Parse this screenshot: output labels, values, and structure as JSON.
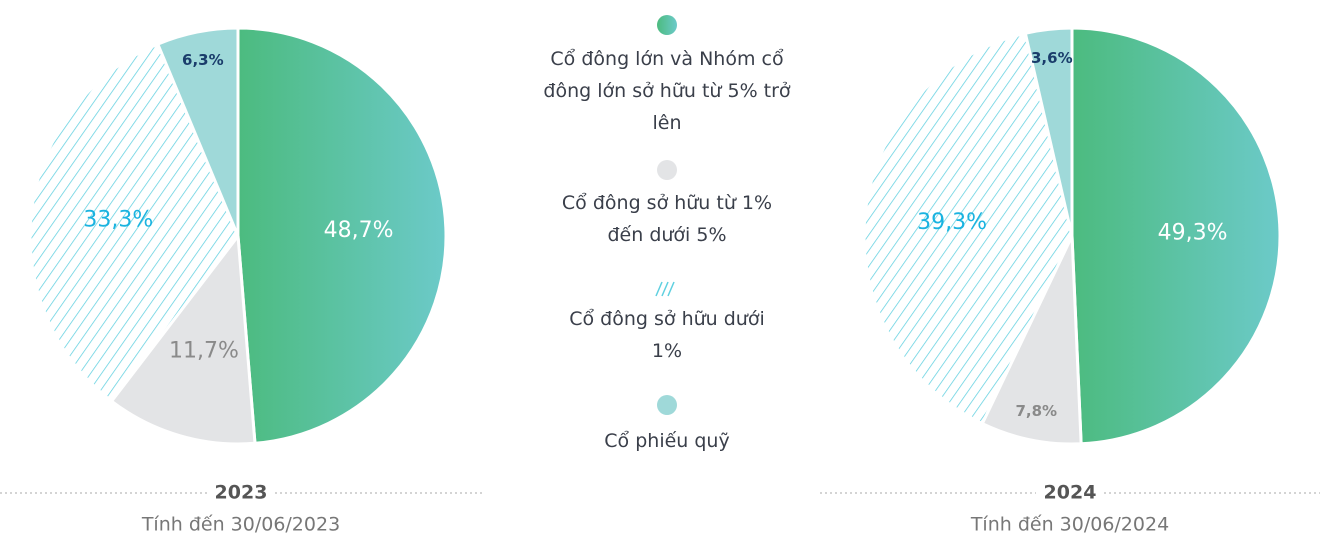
{
  "chart_data": [
    {
      "type": "pie",
      "title": "2023",
      "subtitle": "Tính đến 30/06/2023",
      "categories": [
        "Cổ đông lớn và Nhóm cổ đông lớn sở hữu từ 5% trở lên",
        "Cổ đông sở hữu từ 1% đến dưới 5%",
        "Cổ đông sở hữu dưới 1%",
        "Cổ phiếu quỹ"
      ],
      "values": [
        48.7,
        11.7,
        33.3,
        6.3
      ],
      "value_labels": [
        "48,7%",
        "11,7%",
        "33,3%",
        "6,3%"
      ],
      "colors": [
        "#4cbb7f",
        "#e3e4e6",
        "#5fd0e0",
        "#9fd9d9"
      ]
    },
    {
      "type": "pie",
      "title": "2024",
      "subtitle": "Tính đến 30/06/2024",
      "categories": [
        "Cổ đông lớn và Nhóm cổ đông lớn sở hữu từ 5% trở lên",
        "Cổ đông sở hữu từ 1% đến dưới 5%",
        "Cổ đông sở hữu dưới 1%",
        "Cổ phiếu quỹ"
      ],
      "values": [
        49.3,
        7.8,
        39.3,
        3.6
      ],
      "value_labels": [
        "49,3%",
        "7,8%",
        "39,3%",
        "3,6%"
      ],
      "colors": [
        "#4cbb7f",
        "#e3e4e6",
        "#5fd0e0",
        "#9fd9d9"
      ]
    }
  ]
}
